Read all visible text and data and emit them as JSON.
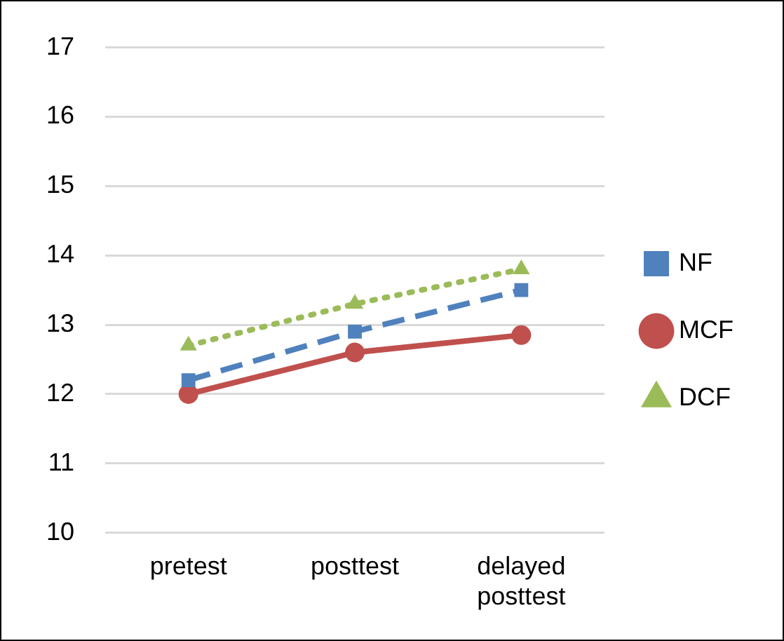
{
  "chart_data": {
    "type": "line",
    "categories": [
      "pretest",
      "posttest",
      "delayed posttest"
    ],
    "series": [
      {
        "name": "NF",
        "color": "#4f81bd",
        "values": [
          12.2,
          12.9,
          13.5
        ],
        "marker": "square",
        "line_style": "dashed"
      },
      {
        "name": "MCF",
        "color": "#c0504d",
        "values": [
          12.0,
          12.6,
          12.85
        ],
        "marker": "circle",
        "line_style": "solid"
      },
      {
        "name": "DCF",
        "color": "#9bbb59",
        "values": [
          12.7,
          13.3,
          13.8
        ],
        "marker": "triangle",
        "line_style": "dotted"
      }
    ],
    "ylim": [
      10,
      17
    ],
    "yticks": [
      10,
      11,
      12,
      13,
      14,
      15,
      16,
      17
    ],
    "grid": "y",
    "legend": "right"
  }
}
